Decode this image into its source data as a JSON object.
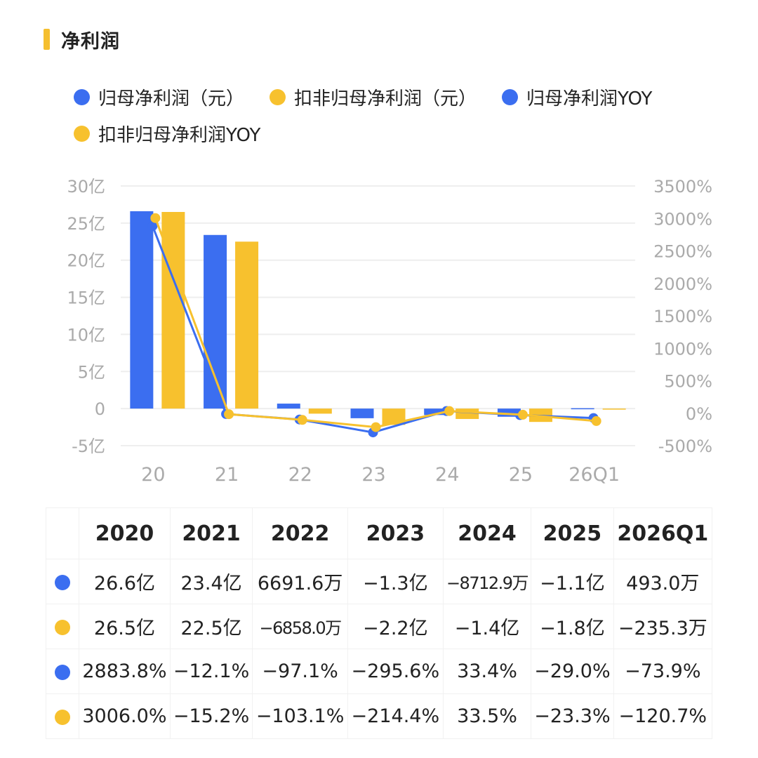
{
  "header": {
    "title": "净利润"
  },
  "colors": {
    "blue": "#3b6ef0",
    "yellow": "#f7c12e",
    "accent": "#f5bf2f"
  },
  "legend": [
    {
      "label": "归母净利润（元）",
      "color": "#3b6ef0"
    },
    {
      "label": "扣非归母净利润（元）",
      "color": "#f7c12e"
    },
    {
      "label": "归母净利润YOY",
      "color": "#3b6ef0"
    },
    {
      "label": "扣非归母净利润YOY",
      "color": "#f7c12e"
    }
  ],
  "chart_data": {
    "type": "bar",
    "categories": [
      "20",
      "21",
      "22",
      "23",
      "24",
      "25",
      "26Q1"
    ],
    "left_axis": {
      "ticks": [
        "30亿",
        "25亿",
        "20亿",
        "15亿",
        "10亿",
        "5亿",
        "0",
        "-5亿"
      ],
      "ylim": [
        -5,
        30
      ],
      "unit": "亿"
    },
    "right_axis": {
      "ticks": [
        "3500%",
        "3000%",
        "2500%",
        "2000%",
        "1500%",
        "1000%",
        "500%",
        "0%",
        "-500%"
      ],
      "ylim": [
        -500,
        3500
      ],
      "unit": "%"
    },
    "grid": true,
    "legend_position": "top-left",
    "series": [
      {
        "name": "归母净利润（元）",
        "type": "bar",
        "axis": "left",
        "color": "#3b6ef0",
        "values": [
          26.6,
          23.4,
          0.669,
          -1.3,
          -0.871,
          -1.1,
          0.0493
        ]
      },
      {
        "name": "扣非归母净利润（元）",
        "type": "bar",
        "axis": "left",
        "color": "#f7c12e",
        "values": [
          26.5,
          22.5,
          -0.686,
          -2.2,
          -1.4,
          -1.8,
          -0.0235
        ]
      },
      {
        "name": "归母净利润YOY",
        "type": "line",
        "axis": "right",
        "color": "#3b6ef0",
        "values": [
          2883.8,
          -12.1,
          -97.1,
          -295.6,
          33.4,
          -29.0,
          -73.9
        ]
      },
      {
        "name": "扣非归母净利润YOY",
        "type": "line",
        "axis": "right",
        "color": "#f7c12e",
        "values": [
          3006.0,
          -15.2,
          -103.1,
          -214.4,
          33.5,
          -23.3,
          -120.7
        ]
      }
    ]
  },
  "table": {
    "headers": [
      "2020",
      "2021",
      "2022",
      "2023",
      "2024",
      "2025",
      "2026Q1"
    ],
    "rows": [
      {
        "color": "#3b6ef0",
        "cells": [
          "26.6亿",
          "23.4亿",
          "6691.6万",
          "−1.3亿",
          "−8712.9万",
          "−1.1亿",
          "493.0万"
        ]
      },
      {
        "color": "#f7c12e",
        "cells": [
          "26.5亿",
          "22.5亿",
          "−6858.0万",
          "−2.2亿",
          "−1.4亿",
          "−1.8亿",
          "−235.3万"
        ]
      },
      {
        "color": "#3b6ef0",
        "cells": [
          "2883.8%",
          "−12.1%",
          "−97.1%",
          "−295.6%",
          "33.4%",
          "−29.0%",
          "−73.9%"
        ]
      },
      {
        "color": "#f7c12e",
        "cells": [
          "3006.0%",
          "−15.2%",
          "−103.1%",
          "−214.4%",
          "33.5%",
          "−23.3%",
          "−120.7%"
        ]
      }
    ]
  }
}
